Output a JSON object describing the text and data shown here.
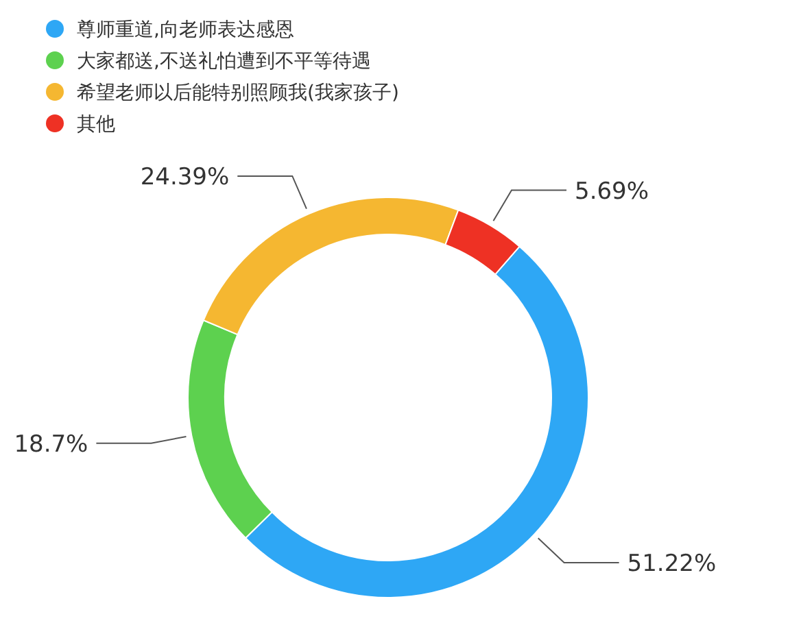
{
  "chart_data": {
    "type": "donut",
    "categories": [
      "尊师重道,向老师表达感恩",
      "大家都送,不送礼怕遭到不平等待遇",
      "希望老师以后能特别照顾我(我家孩子)",
      "其他"
    ],
    "values": [
      51.22,
      18.7,
      24.39,
      5.69
    ],
    "value_labels": [
      "51.22%",
      "18.7%",
      "24.39%",
      "5.69%"
    ],
    "colors": [
      "#2ea7f5",
      "#5dd14f",
      "#f5b731",
      "#ee3124"
    ],
    "legend": "top left"
  }
}
